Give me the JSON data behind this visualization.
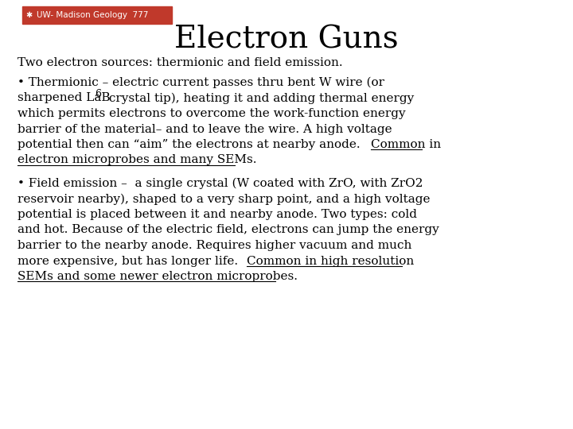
{
  "title": "Electron Guns",
  "background_color": "#ffffff",
  "header_bg_color": "#c0392b",
  "header_text": "UW- Madison Geology  777",
  "header_text_color": "#ffffff",
  "header_font_size": 7.5,
  "title_font_size": 28,
  "title_color": "#000000",
  "body_font_size": 11,
  "body_color": "#000000",
  "intro_line": "Two electron sources: thermionic and field emission.",
  "bullet1_line1": "• Thermionic – electric current passes thru bent W wire (or",
  "bullet1_line2a": "sharpened LaB",
  "bullet1_line2b": "6",
  "bullet1_line2c": " crystal tip), heating it and adding thermal energy",
  "bullet1_line3": "which permits electrons to overcome the work-function energy",
  "bullet1_line4": "barrier of the material– and to leave the wire. A high voltage",
  "bullet1_line5a": "potential then can “aim” the electrons at nearby anode. ",
  "bullet1_line5b": "Common in",
  "bullet1_line6": "electron microprobes and many SEMs.",
  "bullet2_line1": "• Field emission –  a single crystal (W coated with ZrO, with ZrO2",
  "bullet2_line2": "reservoir nearby), shaped to a very sharp point, and a high voltage",
  "bullet2_line3": "potential is placed between it and nearby anode. Two types: cold",
  "bullet2_line4": "and hot. Because of the electric field, electrons can jump the energy",
  "bullet2_line5": "barrier to the nearby anode. Requires higher vacuum and much",
  "bullet2_line6a": "more expensive, but has longer life. ",
  "bullet2_line6b": "Common in high resolution",
  "bullet2_line7": "SEMs and some newer electron microprobes."
}
